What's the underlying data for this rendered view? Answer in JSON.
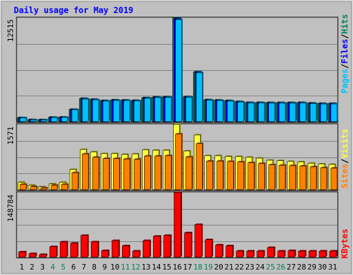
{
  "title": "Daily usage for May 2019",
  "colors": {
    "background": "#C0C0C0",
    "title": "#0000FF",
    "panel": "#C0C0C0",
    "grid": "#808080",
    "hits": "#00805C",
    "files": "#0000FF",
    "pages": "#00C0FF",
    "visits": "#FFFF40",
    "sites": "#FF8000",
    "kbytes": "#FF0000",
    "weekend_label": "#00805C"
  },
  "legend": {
    "top": [
      "Pages",
      "Files",
      "Hits"
    ],
    "middle": [
      "Sites",
      "Visits"
    ],
    "bottom": [
      "KBytes"
    ]
  },
  "axis_labels": {
    "top_max": "12515",
    "middle_max": "1571",
    "bottom_max": "148784"
  },
  "days": [
    "1",
    "2",
    "3",
    "4",
    "5",
    "6",
    "7",
    "8",
    "9",
    "10",
    "11",
    "12",
    "13",
    "14",
    "15",
    "16",
    "17",
    "18",
    "19",
    "20",
    "21",
    "22",
    "23",
    "24",
    "25",
    "26",
    "27",
    "28",
    "29",
    "30",
    "31"
  ],
  "weekend_days": [
    "4",
    "5",
    "11",
    "12",
    "18",
    "19",
    "25",
    "26"
  ],
  "chart_data": [
    {
      "type": "bar",
      "panel": "top",
      "ylim": [
        0,
        12515
      ],
      "grid": true,
      "categories": [
        "1",
        "2",
        "3",
        "4",
        "5",
        "6",
        "7",
        "8",
        "9",
        "10",
        "11",
        "12",
        "13",
        "14",
        "15",
        "16",
        "17",
        "18",
        "19",
        "20",
        "21",
        "22",
        "23",
        "24",
        "25",
        "26",
        "27",
        "28",
        "29",
        "30",
        "31"
      ],
      "series": [
        {
          "name": "Hits",
          "values": [
            480,
            240,
            230,
            530,
            550,
            1480,
            2800,
            2700,
            2540,
            2620,
            2600,
            2560,
            2880,
            2970,
            2990,
            12515,
            3000,
            6000,
            2640,
            2600,
            2540,
            2420,
            2310,
            2310,
            2300,
            2300,
            2300,
            2310,
            2240,
            2200,
            2200
          ]
        },
        {
          "name": "Files",
          "values": [
            460,
            220,
            210,
            500,
            520,
            1450,
            2760,
            2650,
            2500,
            2580,
            2560,
            2520,
            2840,
            2930,
            2950,
            12400,
            2960,
            5950,
            2600,
            2560,
            2500,
            2380,
            2270,
            2270,
            2260,
            2260,
            2260,
            2270,
            2200,
            2160,
            2160
          ]
        },
        {
          "name": "Pages",
          "values": [
            450,
            210,
            200,
            490,
            510,
            1430,
            2730,
            2630,
            2480,
            2560,
            2540,
            2500,
            2820,
            2910,
            2930,
            12300,
            2940,
            5900,
            2580,
            2540,
            2480,
            2360,
            2250,
            2250,
            2240,
            2240,
            2240,
            2250,
            2180,
            2140,
            2140
          ]
        }
      ]
    },
    {
      "type": "bar",
      "panel": "middle",
      "ylim": [
        0,
        1571
      ],
      "grid": true,
      "categories": [
        "1",
        "2",
        "3",
        "4",
        "5",
        "6",
        "7",
        "8",
        "9",
        "10",
        "11",
        "12",
        "13",
        "14",
        "15",
        "16",
        "17",
        "18",
        "19",
        "20",
        "21",
        "22",
        "23",
        "24",
        "25",
        "26",
        "27",
        "28",
        "29",
        "30",
        "31"
      ],
      "series": [
        {
          "name": "Visits",
          "values": [
            180,
            110,
            70,
            140,
            180,
            490,
            970,
            910,
            870,
            870,
            850,
            860,
            960,
            950,
            950,
            1571,
            930,
            1320,
            820,
            820,
            800,
            800,
            780,
            760,
            710,
            700,
            680,
            670,
            640,
            620,
            610
          ]
        },
        {
          "name": "Sites",
          "values": [
            130,
            75,
            45,
            110,
            130,
            410,
            860,
            780,
            750,
            750,
            740,
            730,
            810,
            810,
            820,
            1340,
            790,
            1110,
            690,
            690,
            680,
            670,
            650,
            630,
            600,
            590,
            580,
            570,
            550,
            530,
            520
          ]
        }
      ]
    },
    {
      "type": "bar",
      "panel": "bottom",
      "ylim": [
        0,
        148784
      ],
      "grid": true,
      "categories": [
        "1",
        "2",
        "3",
        "4",
        "5",
        "6",
        "7",
        "8",
        "9",
        "10",
        "11",
        "12",
        "13",
        "14",
        "15",
        "16",
        "17",
        "18",
        "19",
        "20",
        "21",
        "22",
        "23",
        "24",
        "25",
        "26",
        "27",
        "28",
        "29",
        "30",
        "31"
      ],
      "series": [
        {
          "name": "KBytes",
          "values": [
            12000,
            8000,
            6000,
            24000,
            35000,
            32000,
            50000,
            35000,
            15000,
            38000,
            26000,
            14000,
            38000,
            48000,
            50000,
            148784,
            56000,
            75000,
            40000,
            28000,
            26000,
            14000,
            14000,
            14000,
            22000,
            14000,
            15000,
            14000,
            14000,
            14000,
            14000
          ]
        }
      ]
    }
  ]
}
